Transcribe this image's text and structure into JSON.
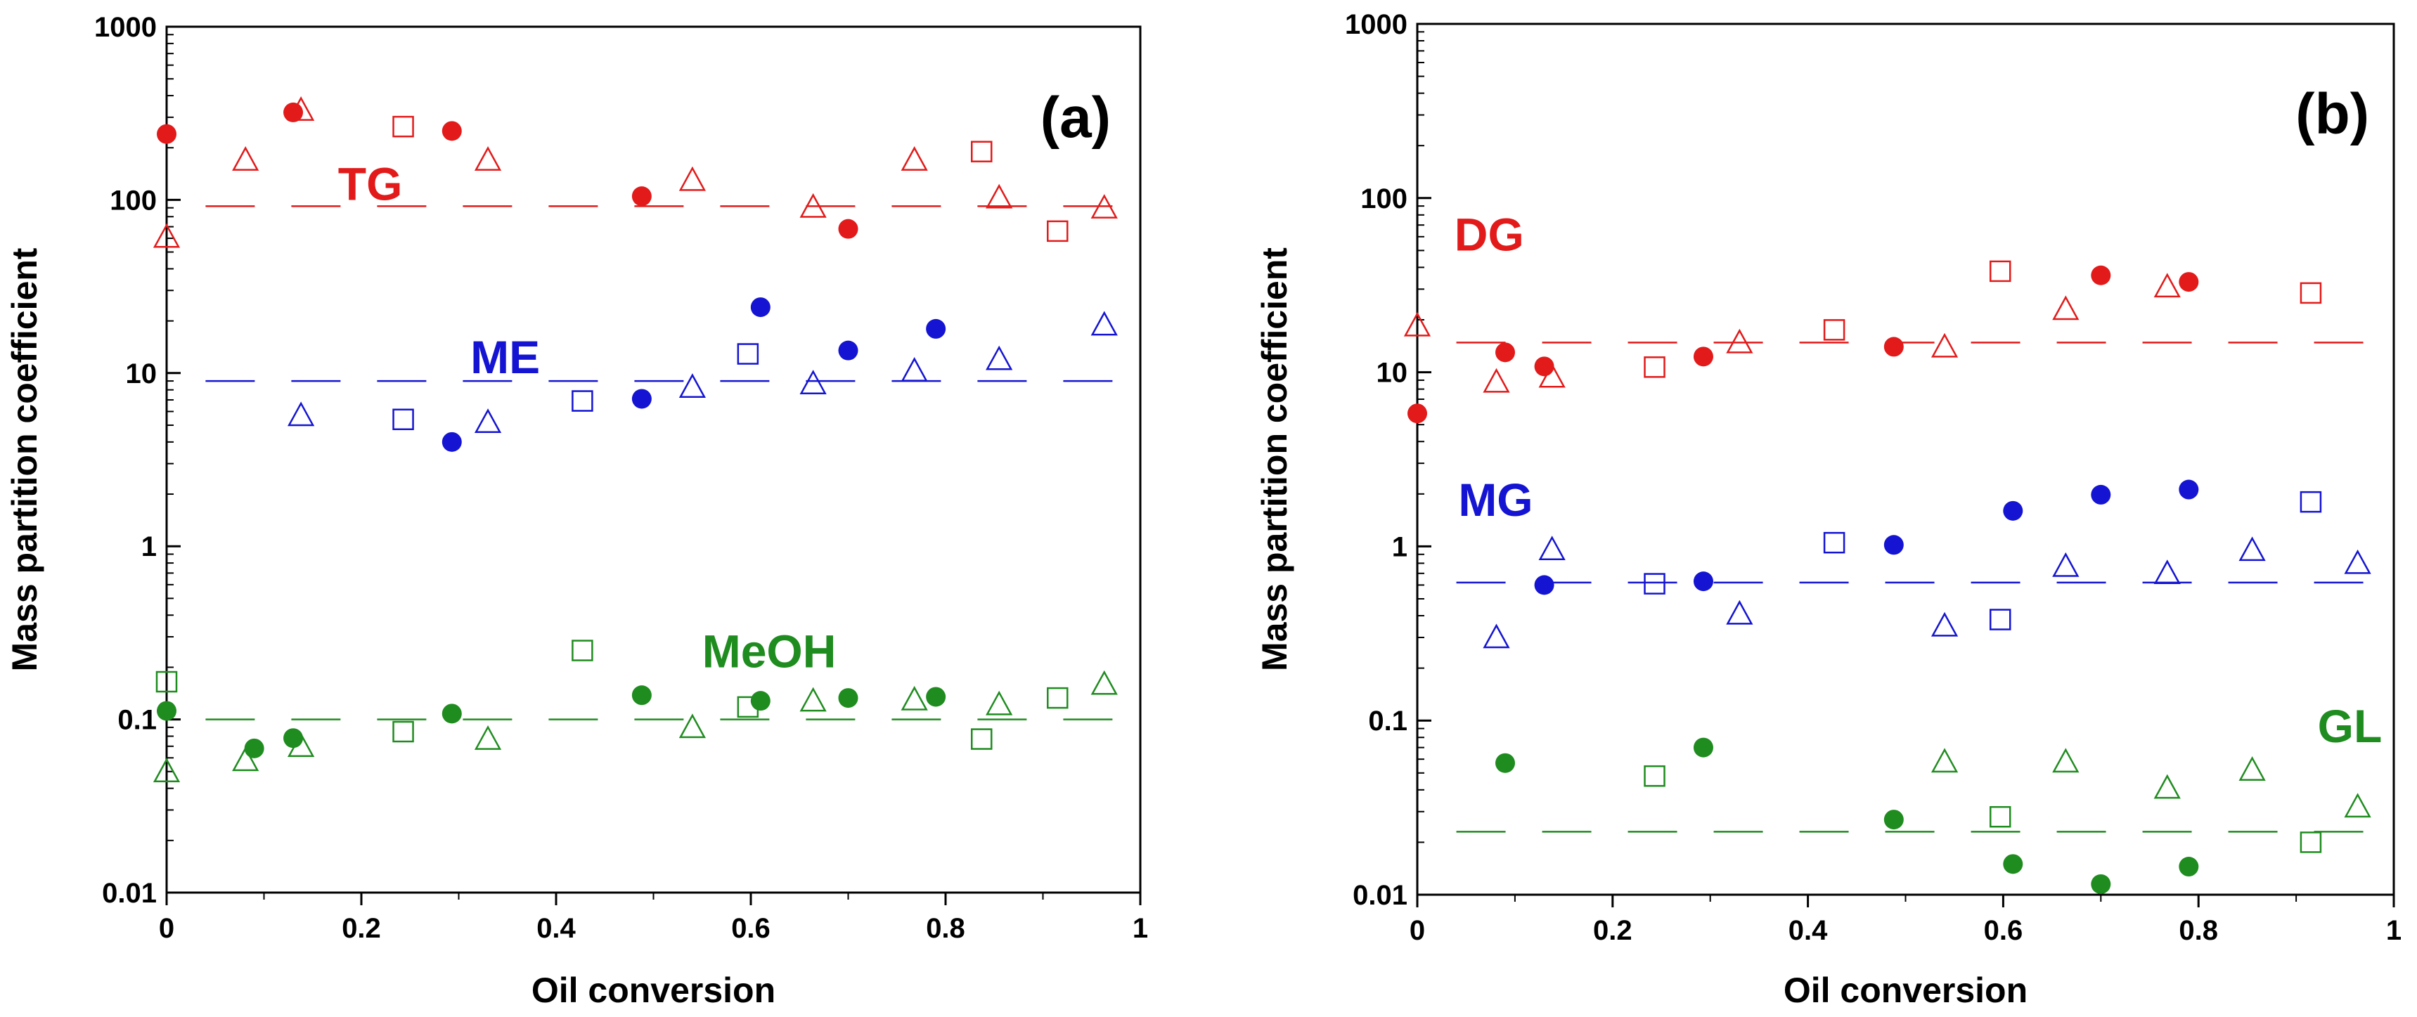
{
  "colors": {
    "red": "#e21a1a",
    "blue": "#1414d2",
    "green": "#1f8c1f"
  },
  "chart_data": [
    {
      "type": "scatter",
      "panel_label": "(a)",
      "xlabel": "Oil conversion",
      "ylabel": "Mass partition coefficient",
      "yscale": "log",
      "xlim": [
        0,
        1
      ],
      "ylim": [
        0.01,
        1000
      ],
      "xticks": [
        0,
        0.2,
        0.4,
        0.6,
        0.8,
        1
      ],
      "xtick_labels": [
        "0",
        "0.2",
        "0.4",
        "0.6",
        "0.8",
        "1"
      ],
      "yticks": [
        0.01,
        0.1,
        1,
        10,
        100,
        1000
      ],
      "ytick_labels": [
        "0.01",
        "0.1",
        "1",
        "10",
        "100",
        "1000"
      ],
      "series": [
        {
          "name": "TG",
          "color": "red",
          "label_at": [
            0.176,
            100
          ],
          "fit_value": 92,
          "circles": [
            [
              0,
              240
            ],
            [
              0.13,
              320
            ],
            [
              0.293,
              250
            ],
            [
              0.488,
              105
            ],
            [
              0.7,
              68
            ]
          ],
          "squares": [
            [
              0.243,
              265
            ],
            [
              0.837,
              190
            ],
            [
              0.915,
              66
            ]
          ],
          "triangles": [
            [
              0,
              61
            ],
            [
              0.081,
              170
            ],
            [
              0.138,
              330
            ],
            [
              0.33,
              170
            ],
            [
              0.54,
              130
            ],
            [
              0.664,
              91
            ],
            [
              0.768,
              170
            ],
            [
              0.855,
              103
            ],
            [
              0.963,
              90
            ]
          ]
        },
        {
          "name": "ME",
          "color": "blue",
          "label_at": [
            0.312,
            10
          ],
          "fit_value": 9,
          "circles": [
            [
              0.293,
              4
            ],
            [
              0.488,
              7.1
            ],
            [
              0.61,
              24
            ],
            [
              0.7,
              13.5
            ],
            [
              0.79,
              18
            ]
          ],
          "squares": [
            [
              0.243,
              5.4
            ],
            [
              0.427,
              6.9
            ],
            [
              0.597,
              12.9
            ]
          ],
          "triangles": [
            [
              0.138,
              5.7
            ],
            [
              0.33,
              5.2
            ],
            [
              0.54,
              8.3
            ],
            [
              0.664,
              8.7
            ],
            [
              0.768,
              10.3
            ],
            [
              0.855,
              12
            ],
            [
              0.963,
              19
            ]
          ]
        },
        {
          "name": "MeOH",
          "color": "green",
          "label_at": [
            0.55,
            0.2
          ],
          "fit_value": 0.1,
          "circles": [
            [
              0,
              0.112
            ],
            [
              0.09,
              0.068
            ],
            [
              0.13,
              0.078
            ],
            [
              0.293,
              0.108
            ],
            [
              0.488,
              0.138
            ],
            [
              0.61,
              0.128
            ],
            [
              0.7,
              0.133
            ],
            [
              0.79,
              0.135
            ]
          ],
          "squares": [
            [
              0,
              0.165
            ],
            [
              0.243,
              0.085
            ],
            [
              0.427,
              0.25
            ],
            [
              0.597,
              0.118
            ],
            [
              0.837,
              0.077
            ],
            [
              0.915,
              0.133
            ]
          ],
          "triangles": [
            [
              0,
              0.05
            ],
            [
              0.081,
              0.058
            ],
            [
              0.138,
              0.07
            ],
            [
              0.33,
              0.077
            ],
            [
              0.54,
              0.09
            ],
            [
              0.664,
              0.128
            ],
            [
              0.768,
              0.13
            ],
            [
              0.855,
              0.122
            ],
            [
              0.963,
              0.16
            ]
          ]
        }
      ]
    },
    {
      "type": "scatter",
      "panel_label": "(b)",
      "xlabel": "Oil conversion",
      "ylabel": "Mass partition coefficient",
      "yscale": "log",
      "xlim": [
        0,
        1
      ],
      "ylim": [
        0.01,
        1000
      ],
      "xticks": [
        0,
        0.2,
        0.4,
        0.6,
        0.8,
        1
      ],
      "xtick_labels": [
        "0",
        "0.2",
        "0.4",
        "0.6",
        "0.8",
        "1"
      ],
      "yticks": [
        0.01,
        0.1,
        1,
        10,
        100,
        1000
      ],
      "ytick_labels": [
        "0.01",
        "0.1",
        "1",
        "10",
        "100",
        "1000"
      ],
      "series": [
        {
          "name": "DG",
          "color": "red",
          "label_at": [
            0.038,
            50
          ],
          "fit_value": 14.8,
          "circles": [
            [
              0,
              5.8
            ],
            [
              0.09,
              13
            ],
            [
              0.13,
              10.8
            ],
            [
              0.293,
              12.3
            ],
            [
              0.488,
              14
            ],
            [
              0.7,
              36
            ],
            [
              0.79,
              33
            ]
          ],
          "squares": [
            [
              0.243,
              10.7
            ],
            [
              0.427,
              17.5
            ],
            [
              0.597,
              38
            ],
            [
              0.915,
              28.5
            ]
          ],
          "triangles": [
            [
              0,
              18.5
            ],
            [
              0.081,
              8.8
            ],
            [
              0.138,
              9.4
            ],
            [
              0.33,
              14.8
            ],
            [
              0.54,
              14
            ],
            [
              0.664,
              23
            ],
            [
              0.768,
              31
            ]
          ]
        },
        {
          "name": "MG",
          "color": "blue",
          "label_at": [
            0.042,
            1.5
          ],
          "fit_value": 0.62,
          "circles": [
            [
              0.13,
              0.6
            ],
            [
              0.293,
              0.63
            ],
            [
              0.488,
              1.02
            ],
            [
              0.61,
              1.6
            ],
            [
              0.7,
              1.98
            ],
            [
              0.79,
              2.12
            ]
          ],
          "squares": [
            [
              0.243,
              0.61
            ],
            [
              0.427,
              1.05
            ],
            [
              0.597,
              0.38
            ],
            [
              0.915,
              1.8
            ]
          ],
          "triangles": [
            [
              0.081,
              0.3
            ],
            [
              0.138,
              0.96
            ],
            [
              0.33,
              0.41
            ],
            [
              0.54,
              0.35
            ],
            [
              0.664,
              0.77
            ],
            [
              0.768,
              0.7
            ],
            [
              0.855,
              0.95
            ],
            [
              0.963,
              0.8
            ]
          ]
        },
        {
          "name": "GL",
          "color": "green",
          "label_at": [
            0.922,
            0.075
          ],
          "fit_value": 0.023,
          "circles": [
            [
              0.09,
              0.057
            ],
            [
              0.293,
              0.07
            ],
            [
              0.488,
              0.027
            ],
            [
              0.61,
              0.015
            ],
            [
              0.7,
              0.0115
            ],
            [
              0.79,
              0.0145
            ]
          ],
          "squares": [
            [
              0.243,
              0.048
            ],
            [
              0.597,
              0.028
            ],
            [
              0.915,
              0.02
            ]
          ],
          "triangles": [
            [
              0.54,
              0.058
            ],
            [
              0.664,
              0.058
            ],
            [
              0.768,
              0.041
            ],
            [
              0.855,
              0.052
            ],
            [
              0.963,
              0.032
            ]
          ]
        }
      ]
    }
  ]
}
